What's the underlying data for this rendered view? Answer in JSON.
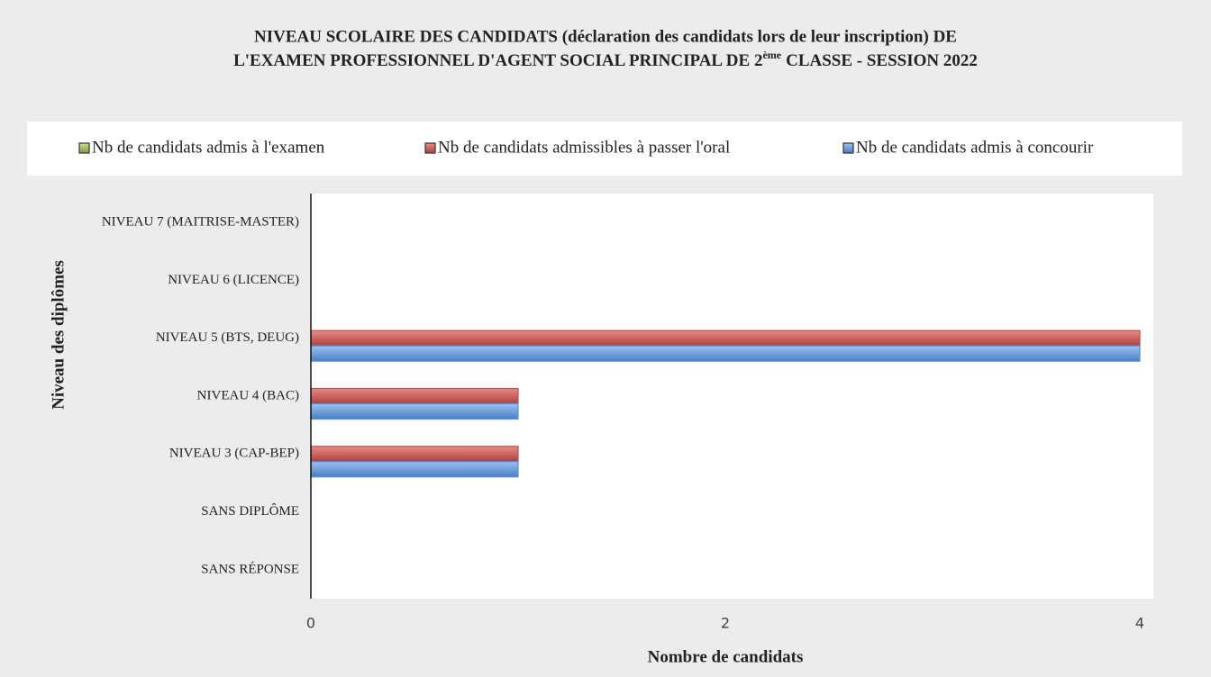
{
  "chart_data": {
    "type": "hbar",
    "title": [
      "NIVEAU SCOLAIRE DES CANDIDATS (déclaration des candidats lors de leur inscription) DE",
      "L'EXAMEN PROFESSIONNEL D'AGENT SOCIAL PRINCIPAL DE 2",
      "ème",
      "CLASSE - SESSION 2022"
    ],
    "categories": [
      "NIVEAU 7 (MAITRISE-MASTER)",
      "NIVEAU 6 (LICENCE)",
      "NIVEAU 5 (BTS, DEUG)",
      "NIVEAU 4 (BAC)",
      "NIVEAU 3 (CAP-BEP)",
      "SANS DIPLÔME",
      "SANS RÉPONSE"
    ],
    "series": [
      {
        "name": "Nb de candidats admis à l'examen",
        "color": "#9bbb59",
        "values": [
          0,
          0,
          0,
          0,
          0,
          0,
          0
        ]
      },
      {
        "name": "Nb de candidats admissibles à passer l'oral",
        "color": "#c0504d",
        "values": [
          0,
          0,
          4,
          1,
          1,
          0,
          0
        ]
      },
      {
        "name": "Nb de candidats admis à concourir",
        "color": "#5b8fd6",
        "values": [
          0,
          0,
          4,
          1,
          1,
          0,
          0
        ]
      }
    ],
    "xlabel": "Nombre de candidats",
    "ylabel": "Niveau des diplômes",
    "xlim": [
      0,
      4
    ],
    "xticks": [
      0,
      2,
      4
    ],
    "legend": "top"
  }
}
